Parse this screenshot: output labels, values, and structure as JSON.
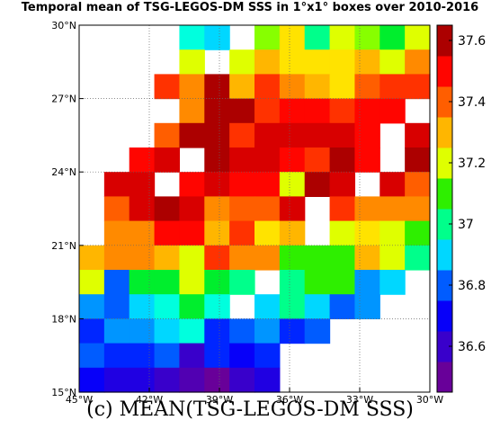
{
  "chart_data": {
    "type": "heatmap",
    "title": "Temporal mean of TSG-LEGOS-DM SSS in 1°x1° boxes over 2010-2016",
    "caption": "(c) MEAN(TSG-LEGOS-DM SSS)",
    "x_ticks": [
      "45°W",
      "42°W",
      "39°W",
      "36°W",
      "33°W",
      "30°W"
    ],
    "y_ticks": [
      "15°N",
      "18°N",
      "21°N",
      "24°N",
      "27°N",
      "30°N"
    ],
    "xlim": [
      -45,
      -30
    ],
    "ylim": [
      15,
      30
    ],
    "colorbar": {
      "ticks": [
        "37.6",
        "37.4",
        "37.2",
        "37",
        "36.8",
        "36.6"
      ],
      "tick_values": [
        37.6,
        37.4,
        37.2,
        37.0,
        36.8,
        36.6
      ],
      "range": [
        36.45,
        37.65
      ]
    },
    "grid": true,
    "rows_top_to_bottom": [
      [
        null,
        null,
        null,
        null,
        36.95,
        36.9,
        null,
        37.15,
        37.25,
        37.0,
        37.2,
        37.15,
        37.05,
        37.2
      ],
      [
        null,
        null,
        null,
        null,
        37.2,
        null,
        37.2,
        37.3,
        37.25,
        37.25,
        37.25,
        37.3,
        37.2,
        37.35
      ],
      [
        null,
        null,
        null,
        37.45,
        37.35,
        37.6,
        37.3,
        37.45,
        37.35,
        37.3,
        37.25,
        37.4,
        37.45,
        37.45
      ],
      [
        null,
        null,
        null,
        null,
        37.35,
        37.6,
        37.6,
        37.45,
        37.5,
        37.5,
        37.45,
        37.5,
        37.5,
        null
      ],
      [
        null,
        null,
        null,
        37.4,
        37.6,
        37.6,
        37.45,
        37.55,
        37.55,
        37.55,
        37.55,
        37.5,
        null,
        37.55
      ],
      [
        null,
        null,
        37.5,
        37.55,
        null,
        37.6,
        37.55,
        37.55,
        37.5,
        37.45,
        37.6,
        37.5,
        null,
        37.6
      ],
      [
        null,
        37.55,
        37.55,
        null,
        37.5,
        37.55,
        37.5,
        37.5,
        37.2,
        37.6,
        37.55,
        null,
        37.55,
        37.4
      ],
      [
        null,
        37.4,
        37.55,
        37.6,
        37.55,
        37.35,
        37.4,
        37.4,
        37.55,
        null,
        37.45,
        37.35,
        37.35,
        37.35
      ],
      [
        null,
        37.35,
        37.35,
        37.5,
        37.5,
        37.3,
        37.45,
        37.25,
        37.3,
        null,
        37.2,
        37.25,
        37.2,
        37.1
      ],
      [
        37.3,
        37.35,
        37.35,
        37.3,
        37.2,
        37.45,
        37.35,
        37.35,
        37.1,
        37.1,
        37.1,
        37.3,
        37.2,
        37.0
      ],
      [
        37.2,
        36.8,
        37.05,
        37.05,
        37.2,
        37.05,
        37.0,
        null,
        37.0,
        37.1,
        37.1,
        36.85,
        36.9,
        null
      ],
      [
        36.85,
        36.8,
        36.9,
        36.95,
        37.05,
        36.95,
        null,
        36.9,
        37.0,
        36.9,
        36.8,
        36.85,
        null,
        null
      ],
      [
        36.75,
        36.85,
        36.85,
        36.9,
        36.95,
        36.75,
        36.8,
        36.85,
        36.75,
        36.8,
        null,
        null,
        null,
        null
      ],
      [
        36.8,
        36.75,
        36.75,
        36.8,
        36.6,
        36.75,
        36.7,
        36.75,
        null,
        null,
        null,
        null,
        null,
        null
      ],
      [
        36.7,
        36.65,
        36.65,
        36.6,
        36.55,
        36.5,
        36.6,
        36.65,
        null,
        null,
        null,
        null,
        null,
        null
      ]
    ]
  }
}
